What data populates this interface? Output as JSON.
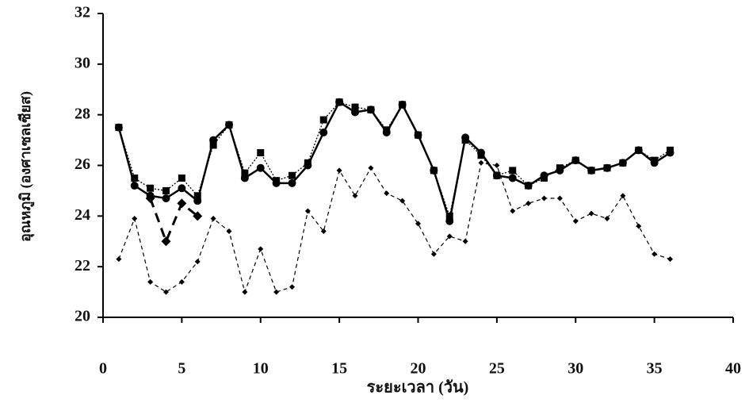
{
  "chart_data": {
    "type": "line",
    "xlabel": "ระยะเวลา (วัน)",
    "ylabel": "อุณหภูมิ (องศาเซลเซียส)",
    "x": [
      1,
      2,
      3,
      4,
      5,
      6,
      7,
      8,
      9,
      10,
      11,
      12,
      13,
      14,
      15,
      16,
      17,
      18,
      19,
      20,
      21,
      22,
      23,
      24,
      25,
      26,
      27,
      28,
      29,
      30,
      31,
      32,
      33,
      34,
      35,
      36
    ],
    "series": [
      {
        "color": "#000000",
        "line_style": "solid",
        "marker": "circle",
        "values": [
          27.5,
          25.2,
          24.8,
          24.7,
          25.1,
          24.6,
          27.0,
          27.6,
          25.5,
          25.9,
          25.3,
          25.3,
          26.0,
          27.3,
          28.5,
          28.1,
          28.2,
          27.3,
          28.4,
          27.2,
          25.8,
          23.8,
          27.1,
          26.5,
          25.6,
          25.5,
          25.2,
          25.6,
          25.8,
          26.2,
          25.8,
          25.9,
          26.1,
          26.6,
          26.1,
          26.5
        ]
      },
      {
        "color": "#000000",
        "line_style": "dotted",
        "marker": "square",
        "values": [
          27.5,
          25.5,
          25.1,
          25.0,
          25.5,
          24.8,
          26.8,
          27.6,
          25.7,
          26.5,
          25.4,
          25.6,
          26.1,
          27.8,
          28.5,
          28.3,
          28.2,
          27.4,
          28.4,
          27.2,
          25.8,
          24.0,
          27.0,
          26.4,
          25.6,
          25.8,
          25.2,
          25.5,
          25.9,
          26.2,
          25.8,
          25.9,
          26.1,
          26.6,
          26.2,
          26.6
        ]
      },
      {
        "color": "#000000",
        "line_style": "dashed",
        "marker": "small-diamond",
        "values": [
          22.3,
          23.9,
          21.4,
          21.0,
          21.4,
          22.2,
          23.9,
          23.4,
          21.0,
          22.7,
          21.0,
          21.2,
          24.2,
          23.4,
          25.8,
          24.8,
          25.9,
          24.9,
          24.6,
          23.7,
          22.5,
          23.2,
          23.0,
          26.1,
          26.0,
          24.2,
          24.5,
          24.7,
          24.7,
          23.8,
          24.1,
          23.9,
          24.8,
          23.6,
          22.5,
          22.3
        ]
      },
      {
        "color": "#000000",
        "line_style": "bold-dashed",
        "marker": "diamond",
        "values": [
          null,
          null,
          24.7,
          23.0,
          24.5,
          24.0,
          null,
          null,
          null,
          null,
          null,
          null,
          null,
          null,
          null,
          null,
          null,
          null,
          null,
          null,
          null,
          null,
          null,
          null,
          null,
          null,
          null,
          null,
          null,
          null,
          null,
          null,
          null,
          null,
          null,
          null
        ]
      }
    ],
    "xlim": [
      0,
      40
    ],
    "xticks": [
      0,
      5,
      10,
      15,
      20,
      25,
      30,
      35,
      40
    ],
    "ylim": [
      20,
      32
    ],
    "yticks": [
      20,
      22,
      24,
      26,
      28,
      30,
      32
    ],
    "grid": false
  }
}
